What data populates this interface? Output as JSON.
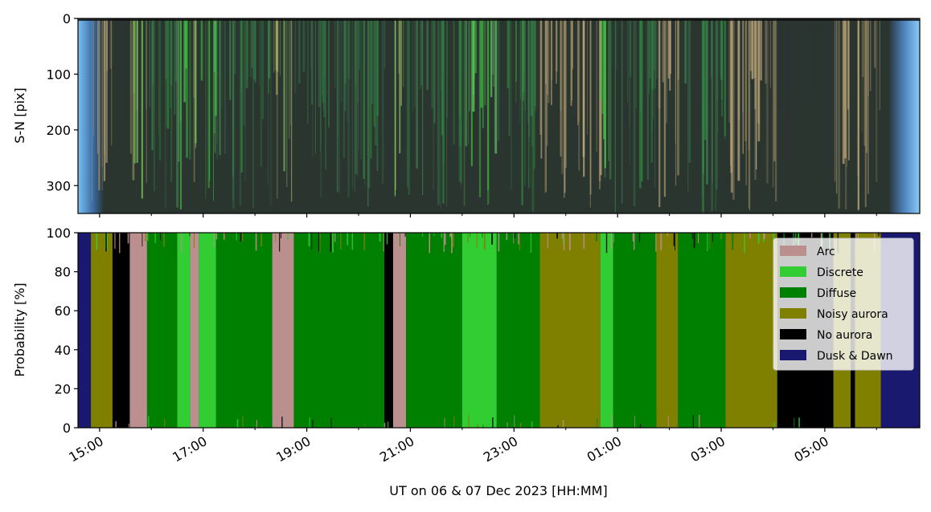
{
  "chart_data": [
    {
      "type": "image",
      "panel": "keogram",
      "ylabel": "S-N [pix]",
      "ylim": [
        350,
        0
      ],
      "yticks": [
        0,
        100,
        200,
        300
      ],
      "xlim": [
        "2023-12-06 14:35",
        "2023-12-07 06:50"
      ],
      "colors": {
        "twilight": "#6fb4ea",
        "sky": "#2a3530",
        "green_aurora": "#3fcf3f",
        "tan_aurora": "#b7a070"
      }
    },
    {
      "type": "area",
      "panel": "probability",
      "ylabel": "Probability [%]",
      "xlabel": "UT on 06 & 07 Dec 2023 [HH:MM]",
      "ylim": [
        0,
        100
      ],
      "yticks": [
        0,
        20,
        40,
        60,
        80,
        100
      ],
      "xlim": [
        "2023-12-06 14:35",
        "2023-12-07 06:50"
      ],
      "xticks": [
        "15:00",
        "17:00",
        "19:00",
        "21:00",
        "23:00",
        "01:00",
        "03:00",
        "05:00"
      ],
      "legend_position": "top-right",
      "series": [
        {
          "name": "Arc",
          "color": "#bc8f8f"
        },
        {
          "name": "Discrete",
          "color": "#32cd32"
        },
        {
          "name": "Diffuse",
          "color": "#008000"
        },
        {
          "name": "Noisy aurora",
          "color": "#808000"
        },
        {
          "name": "No aurora",
          "color": "#000000"
        },
        {
          "name": "Dusk & Dawn",
          "color": "#191970"
        }
      ],
      "segments": [
        {
          "start": "14:35",
          "end": "14:50",
          "class": "Dusk & Dawn"
        },
        {
          "start": "14:50",
          "end": "15:15",
          "class": "Noisy aurora"
        },
        {
          "start": "15:15",
          "end": "15:35",
          "class": "No aurora"
        },
        {
          "start": "15:35",
          "end": "15:55",
          "class": "Arc"
        },
        {
          "start": "15:55",
          "end": "16:30",
          "class": "Diffuse"
        },
        {
          "start": "16:30",
          "end": "16:45",
          "class": "Discrete"
        },
        {
          "start": "16:45",
          "end": "16:55",
          "class": "Arc"
        },
        {
          "start": "16:55",
          "end": "17:15",
          "class": "Discrete"
        },
        {
          "start": "17:15",
          "end": "18:20",
          "class": "Diffuse"
        },
        {
          "start": "18:20",
          "end": "18:45",
          "class": "Arc"
        },
        {
          "start": "18:45",
          "end": "20:00",
          "class": "Diffuse"
        },
        {
          "start": "20:00",
          "end": "20:30",
          "class": "Diffuse"
        },
        {
          "start": "20:30",
          "end": "20:40",
          "class": "No aurora"
        },
        {
          "start": "20:40",
          "end": "20:55",
          "class": "Arc"
        },
        {
          "start": "20:55",
          "end": "22:00",
          "class": "Diffuse"
        },
        {
          "start": "22:00",
          "end": "22:40",
          "class": "Discrete"
        },
        {
          "start": "22:40",
          "end": "23:30",
          "class": "Diffuse"
        },
        {
          "start": "23:30",
          "end": "00:40",
          "class": "Noisy aurora"
        },
        {
          "start": "00:40",
          "end": "00:55",
          "class": "Discrete"
        },
        {
          "start": "00:55",
          "end": "01:45",
          "class": "Diffuse"
        },
        {
          "start": "01:45",
          "end": "02:10",
          "class": "Noisy aurora"
        },
        {
          "start": "02:10",
          "end": "03:05",
          "class": "Diffuse"
        },
        {
          "start": "03:05",
          "end": "04:05",
          "class": "Noisy aurora"
        },
        {
          "start": "04:05",
          "end": "05:10",
          "class": "No aurora"
        },
        {
          "start": "05:10",
          "end": "05:30",
          "class": "Noisy aurora"
        },
        {
          "start": "05:30",
          "end": "05:35",
          "class": "No aurora"
        },
        {
          "start": "05:35",
          "end": "06:05",
          "class": "Noisy aurora"
        },
        {
          "start": "06:05",
          "end": "06:50",
          "class": "Dusk & Dawn"
        }
      ]
    }
  ]
}
